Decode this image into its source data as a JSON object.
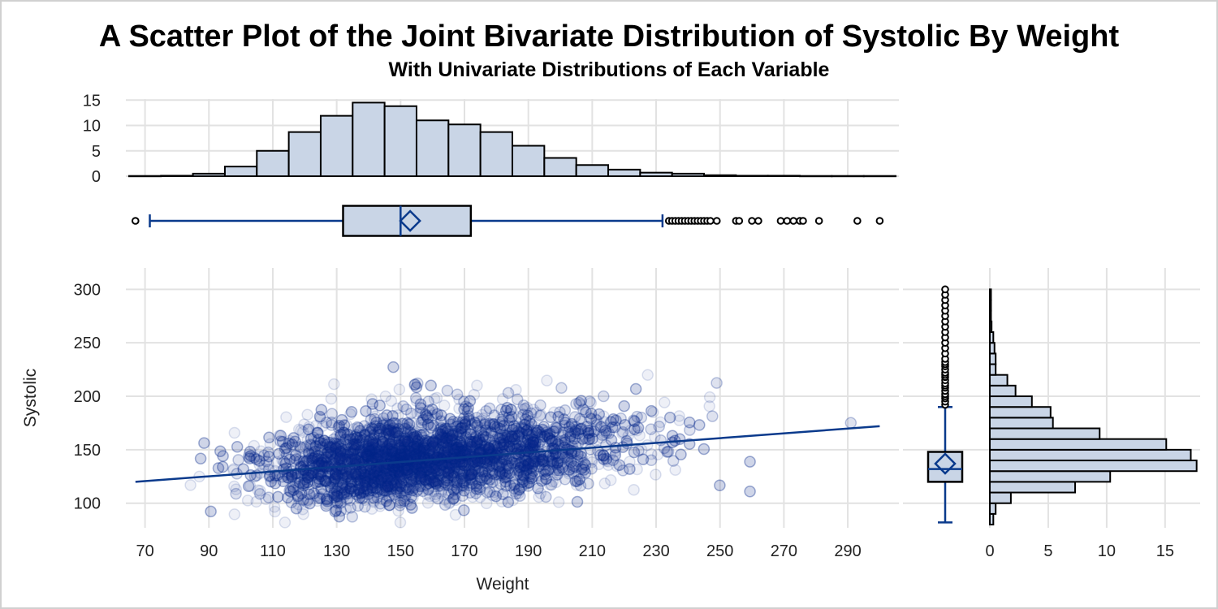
{
  "title": "A Scatter Plot of the Joint Bivariate Distribution of Systolic By Weight",
  "subtitle": "With Univariate Distributions of Each Variable",
  "colors": {
    "marker": "#0a2d8c",
    "fit_line": "#0a3a8c",
    "bar_fill": "#c9d5e6",
    "bar_edge": "#000000",
    "grid": "#e2e2e2"
  },
  "chart_data": [
    {
      "type": "scatter",
      "panel": "main",
      "xlabel": "Weight",
      "ylabel": "Systolic",
      "xlim": [
        64,
        306
      ],
      "ylim": [
        77,
        320
      ],
      "xticks": [
        "70",
        "90",
        "110",
        "130",
        "150",
        "170",
        "190",
        "210",
        "230",
        "250",
        "270",
        "290"
      ],
      "yticks": [
        "100",
        "150",
        "200",
        "250",
        "300"
      ],
      "grid": true,
      "marker": "open circle, transparent",
      "n_points_approx": 5200,
      "fit_line": {
        "x": [
          67,
          300
        ],
        "y": [
          120,
          172
        ]
      },
      "point_cloud": {
        "x_center": 153,
        "x_sd": 28,
        "y_center": 135,
        "y_sd": 22,
        "x_range": [
          67,
          300
        ],
        "y_range": [
          82,
          300
        ]
      }
    },
    {
      "type": "bar",
      "panel": "top-histogram",
      "variable": "Weight",
      "ylim": [
        0,
        16
      ],
      "yticks": [
        "0",
        "5",
        "10",
        "15"
      ],
      "bin_width": 10,
      "bin_starts": [
        65,
        75,
        85,
        95,
        105,
        115,
        125,
        135,
        145,
        155,
        165,
        175,
        185,
        195,
        205,
        215,
        225,
        235,
        245,
        255,
        265,
        275,
        285,
        295
      ],
      "values": [
        0.05,
        0.1,
        0.5,
        1.9,
        5.0,
        8.7,
        11.9,
        14.5,
        13.8,
        11.0,
        10.2,
        8.7,
        6.0,
        3.6,
        2.2,
        1.3,
        0.7,
        0.5,
        0.2,
        0.1,
        0.1,
        0.05,
        0.05,
        0.05
      ]
    },
    {
      "type": "box",
      "panel": "top-boxplot",
      "variable": "Weight",
      "whisker_low": 71.5,
      "q1": 132,
      "median": 150,
      "mean": 153,
      "q3": 172,
      "whisker_high": 232,
      "outliers": [
        67,
        234,
        235,
        236,
        237,
        238,
        239,
        240,
        241,
        242,
        243,
        244,
        245,
        246,
        247,
        249,
        255,
        256,
        260,
        262,
        269,
        271,
        273,
        275,
        276,
        281,
        293,
        300
      ]
    },
    {
      "type": "box",
      "panel": "right-boxplot",
      "variable": "Systolic",
      "whisker_low": 82,
      "q1": 120,
      "median": 132,
      "mean": 137,
      "q3": 148,
      "whisker_high": 190,
      "outliers": [
        192,
        195,
        198,
        200,
        202,
        205,
        208,
        210,
        212,
        215,
        218,
        220,
        222,
        225,
        228,
        230,
        232,
        235,
        240,
        245,
        250,
        255,
        260,
        265,
        270,
        275,
        280,
        285,
        290,
        295,
        300
      ]
    },
    {
      "type": "bar",
      "orientation": "horizontal",
      "panel": "right-histogram",
      "variable": "Systolic",
      "xlim": [
        0,
        18
      ],
      "xticks": [
        "0",
        "5",
        "10",
        "15"
      ],
      "bin_width": 10,
      "bin_starts": [
        80,
        90,
        100,
        110,
        120,
        130,
        140,
        150,
        160,
        170,
        180,
        190,
        200,
        210,
        220,
        230,
        240,
        250,
        260,
        270,
        280,
        290
      ],
      "values": [
        0.3,
        0.5,
        1.8,
        7.3,
        10.3,
        17.7,
        17.2,
        15.1,
        9.4,
        5.4,
        5.2,
        3.6,
        2.2,
        1.5,
        0.5,
        0.5,
        0.4,
        0.3,
        0.15,
        0.1,
        0.1,
        0.1
      ]
    }
  ]
}
